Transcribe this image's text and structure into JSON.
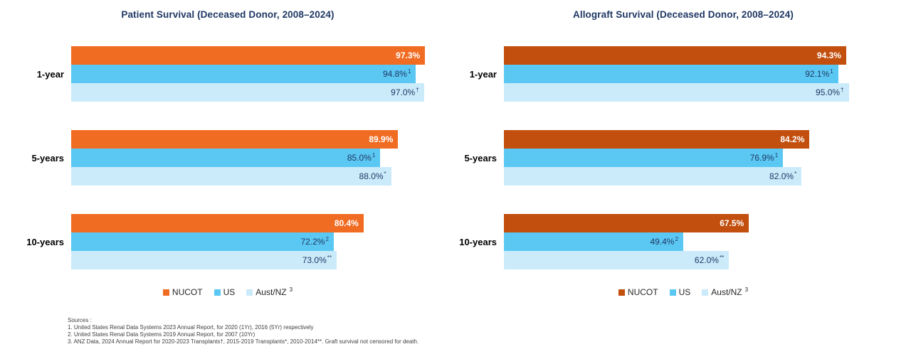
{
  "style": {
    "background": "#FFFFFF",
    "title_color": "#1F3864",
    "value_text_color": "#1F3864",
    "category_color": "#000000",
    "legend_text_color": "#262626",
    "sources_color": "#404040"
  },
  "chart_data": [
    {
      "type": "bar",
      "orientation": "horizontal",
      "title": "Patient Survival (Deceased Donor, 2008–2024)",
      "categories": [
        "1-year",
        "5-years",
        "10-years"
      ],
      "series": [
        {
          "name": "NUCOT",
          "color": "#F16C23",
          "label_style": "white-bold",
          "legend_sup": "",
          "values": [
            97.3,
            89.9,
            80.4
          ],
          "data_labels": [
            "97.3%",
            "89.9%",
            "80.4%"
          ],
          "label_sups": [
            "",
            "",
            ""
          ]
        },
        {
          "name": "US",
          "color": "#5BC8F3",
          "label_style": "navy",
          "legend_sup": "",
          "values": [
            94.8,
            85.0,
            72.2
          ],
          "data_labels": [
            "94.8%",
            "85.0%",
            "72.2%"
          ],
          "label_sups": [
            "1",
            "1",
            "2"
          ]
        },
        {
          "name": "Aust/NZ",
          "color": "#CBEBFB",
          "label_style": "navy",
          "legend_sup": "3",
          "values": [
            97.0,
            88.0,
            73.0
          ],
          "data_labels": [
            "97.0%",
            "88.0%",
            "73.0%"
          ],
          "label_sups": [
            "†",
            "*",
            "**"
          ]
        }
      ],
      "xlim": [
        0,
        100
      ],
      "grid": false,
      "legend_position": "bottom"
    },
    {
      "type": "bar",
      "orientation": "horizontal",
      "title": "Allograft Survival (Deceased Donor, 2008–2024)",
      "categories": [
        "1-year",
        "5-years",
        "10-years"
      ],
      "series": [
        {
          "name": "NUCOT",
          "color": "#C24F0E",
          "label_style": "white-bold",
          "legend_sup": "",
          "values": [
            94.3,
            84.2,
            67.5
          ],
          "data_labels": [
            "94.3%",
            "84.2%",
            "67.5%"
          ],
          "label_sups": [
            "",
            "",
            ""
          ]
        },
        {
          "name": "US",
          "color": "#5BC8F3",
          "label_style": "navy",
          "legend_sup": "",
          "values": [
            92.1,
            76.9,
            49.4
          ],
          "data_labels": [
            "92.1%",
            "76.9%",
            "49.4%"
          ],
          "label_sups": [
            "1",
            "1",
            "2"
          ]
        },
        {
          "name": "Aust/NZ",
          "color": "#CBEBFB",
          "label_style": "navy",
          "legend_sup": "3",
          "values": [
            95.0,
            82.0,
            62.0
          ],
          "data_labels": [
            "95.0%",
            "82.0%",
            "62.0%"
          ],
          "label_sups": [
            "†",
            "*",
            "**"
          ]
        }
      ],
      "xlim": [
        0,
        100
      ],
      "grid": false,
      "legend_position": "bottom"
    }
  ],
  "sources": {
    "heading": "Sources :",
    "lines": [
      "1. United States Renal Data Systems 2023 Annual Report, for 2020 (1Yr), 2016 (5Yr) respectively",
      "2. United States Renal Data Systems 2019 Annual Report, for 2007 (10Yr)",
      "3. ANZ Data, 2024 Annual Report for 2020-2023 Transplants†, 2015-2019 Transplants*, 2010-2014**. Graft survival not censored for death."
    ]
  }
}
